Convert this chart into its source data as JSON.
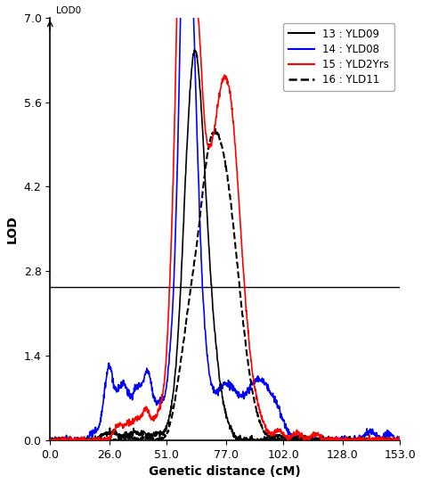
{
  "title": "",
  "xlabel": "Genetic distance (cM)",
  "ylabel": "LOD",
  "xlim": [
    0.0,
    153.0
  ],
  "ylim": [
    0.0,
    7.0
  ],
  "xticks": [
    0.0,
    26.0,
    51.0,
    77.0,
    102.0,
    128.0,
    153.0
  ],
  "yticks": [
    0.0,
    1.4,
    2.8,
    4.2,
    5.6,
    7.0
  ],
  "threshold_y": 2.54,
  "threshold_color": "#000000",
  "lod0_label": "LOD0",
  "legend_entries": [
    {
      "label": "13 : YLD09",
      "color": "#000000",
      "linestyle": "solid",
      "linewidth": 1.2
    },
    {
      "label": "14 : YLD08",
      "color": "#0000ff",
      "linestyle": "solid",
      "linewidth": 1.2
    },
    {
      "label": "15 : YLD2Yrs",
      "color": "#ff0000",
      "linestyle": "solid",
      "linewidth": 1.2
    },
    {
      "label": "16 : YLD11",
      "color": "#000000",
      "linestyle": "dashed",
      "linewidth": 1.5
    }
  ],
  "background_color": "#ffffff",
  "figsize": [
    4.74,
    5.43
  ],
  "dpi": 100
}
